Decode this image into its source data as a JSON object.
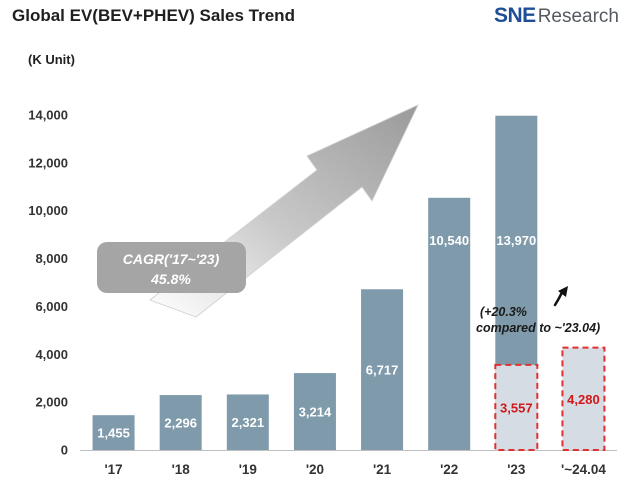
{
  "header": {
    "title": "Global EV(BEV+PHEV) Sales Trend",
    "logo_sne": "SNE",
    "logo_research": "Research"
  },
  "chart_data": {
    "type": "bar",
    "title": "Global EV(BEV+PHEV) Sales Trend",
    "ylabel": "(K Unit)",
    "ylim": [
      0,
      14000
    ],
    "yticks": [
      0,
      2000,
      4000,
      6000,
      8000,
      10000,
      12000,
      14000
    ],
    "ytick_labels": [
      "0",
      "2,000",
      "4,000",
      "6,000",
      "8,000",
      "10,000",
      "12,000",
      "14,000"
    ],
    "categories": [
      "'17",
      "'18",
      "'19",
      "'20",
      "'21",
      "'22",
      "'23",
      "'~24.04"
    ],
    "series": [
      {
        "values": [
          1455,
          2296,
          2321,
          3214,
          6717,
          10540,
          13970,
          null
        ],
        "labels": [
          "1,455",
          "2,296",
          "2,321",
          "3,214",
          "6,717",
          "10,540",
          "13,970",
          ""
        ]
      },
      {
        "values": [
          null,
          null,
          null,
          null,
          null,
          null,
          3557,
          4280
        ],
        "labels": [
          "",
          "",
          "",
          "",
          "",
          "",
          "3,557",
          "4,280"
        ]
      }
    ],
    "annotations": {
      "cagr_line1": "CAGR('17~'23)",
      "cagr_line2": "45.8%",
      "growth_line1": "(+20.3%",
      "growth_line2": "compared to ~'23.04)"
    },
    "grid": false,
    "colors": {
      "bar": "#7f9aab",
      "partial_fill": "#d5dce3",
      "partial_border": "#e03030",
      "partial_text": "#d01818",
      "cagr_box": "#a5a5a5",
      "arrow": "#9a9a9a"
    }
  }
}
